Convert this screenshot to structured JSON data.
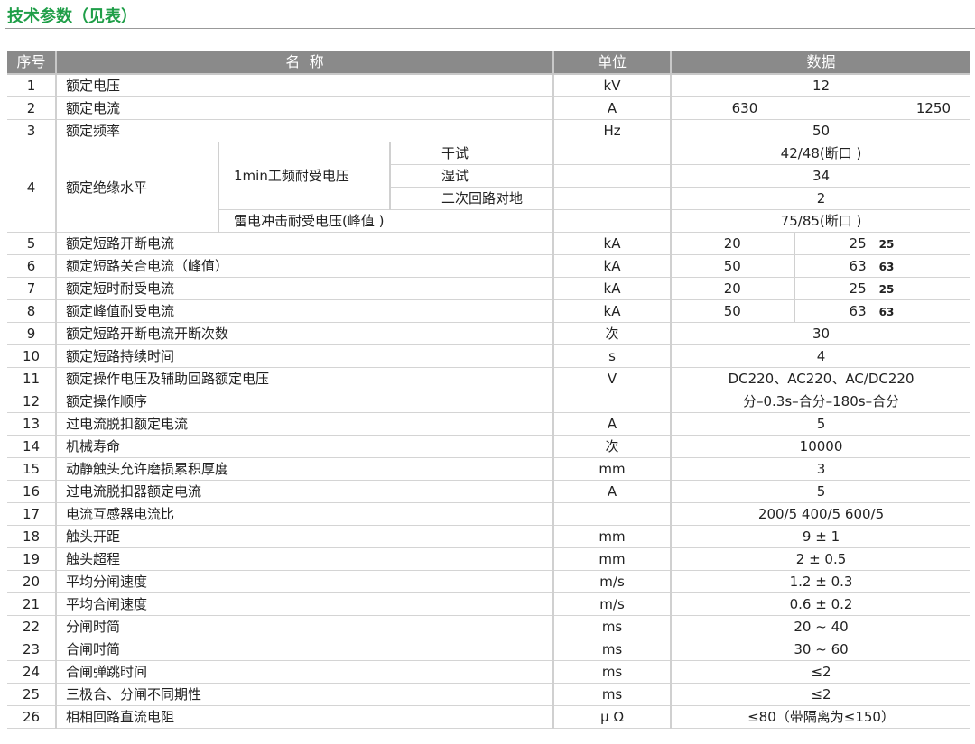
{
  "title": "技术参数（见表）",
  "headers": {
    "seq": "序号",
    "name": "名  称",
    "unit": "单位",
    "data": "数据"
  },
  "row1": {
    "seq": "1",
    "name": "额定电压",
    "unit": "kV",
    "value": "12"
  },
  "row2": {
    "seq": "2",
    "name": "额定电流",
    "unit": "A",
    "value_a": "630",
    "value_b": "1250"
  },
  "row3": {
    "seq": "3",
    "name": "额定频率",
    "unit": "Hz",
    "value": "50"
  },
  "row4": {
    "seq": "4",
    "name": "额定绝缘水平",
    "group": "1min工频耐受电压",
    "sub": [
      {
        "name": "干试",
        "value": "42/48(断口 )"
      },
      {
        "name": "湿试",
        "value": "34"
      },
      {
        "name": "二次回路对地",
        "value": "2"
      }
    ],
    "impulse_name": "雷电冲击耐受电压(峰值 )",
    "impulse_value": "75/85(断口 )"
  },
  "split_rows": [
    {
      "seq": "5",
      "name": "额定短路开断电流",
      "unit": "kA",
      "a": "20",
      "b": "25",
      "c": "25"
    },
    {
      "seq": "6",
      "name": "额定短路关合电流（峰值）",
      "unit": "kA",
      "a": "50",
      "b": "63",
      "c": "63"
    },
    {
      "seq": "7",
      "name": "额定短时耐受电流",
      "unit": "kA",
      "a": "20",
      "b": "25",
      "c": "25"
    },
    {
      "seq": "8",
      "name": "额定峰值耐受电流",
      "unit": "kA",
      "a": "50",
      "b": "63",
      "c": "63"
    }
  ],
  "rows": [
    {
      "seq": "9",
      "name": "额定短路开断电流开断次数",
      "unit": "次",
      "value": "30"
    },
    {
      "seq": "10",
      "name": "额定短路持续时间",
      "unit": "s",
      "value": "4"
    },
    {
      "seq": "11",
      "name": "额定操作电压及辅助回路额定电压",
      "unit": "V",
      "value": "DC220、AC220、AC/DC220"
    },
    {
      "seq": "12",
      "name": "额定操作顺序",
      "unit": "",
      "value": "分–0.3s–合分–180s–合分"
    },
    {
      "seq": "13",
      "name": "过电流脱扣额定电流",
      "unit": "A",
      "value": "5"
    },
    {
      "seq": "14",
      "name": "机械寿命",
      "unit": "次",
      "value": "10000"
    },
    {
      "seq": "15",
      "name": "动静触头允许磨损累积厚度",
      "unit": "mm",
      "value": "3"
    },
    {
      "seq": "16",
      "name": "过电流脱扣器额定电流",
      "unit": "A",
      "value": "5"
    },
    {
      "seq": "17",
      "name": "电流互感器电流比",
      "unit": "",
      "value": "200/5 400/5 600/5"
    },
    {
      "seq": "18",
      "name": "触头开距",
      "unit": "mm",
      "value": "9 ± 1"
    },
    {
      "seq": "19",
      "name": "触头超程",
      "unit": "mm",
      "value": "2 ± 0.5"
    },
    {
      "seq": "20",
      "name": "平均分闸速度",
      "unit": "m/s",
      "value": "1.2 ± 0.3"
    },
    {
      "seq": "21",
      "name": "平均合闸速度",
      "unit": "m/s",
      "value": "0.6 ± 0.2"
    },
    {
      "seq": "22",
      "name": "分闸时简",
      "unit": "ms",
      "value": "20 ~ 40"
    },
    {
      "seq": "23",
      "name": "合闸时简",
      "unit": "ms",
      "value": "30 ~ 60"
    },
    {
      "seq": "24",
      "name": "合闸弹跳时间",
      "unit": "ms",
      "value": "≤2"
    },
    {
      "seq": "25",
      "name": "三极合、分闸不同期性",
      "unit": "ms",
      "value": "≤2"
    },
    {
      "seq": "26",
      "name": "相相回路直流电阻",
      "unit": "μ Ω",
      "value": "≤80（带隔离为≤150）"
    }
  ]
}
